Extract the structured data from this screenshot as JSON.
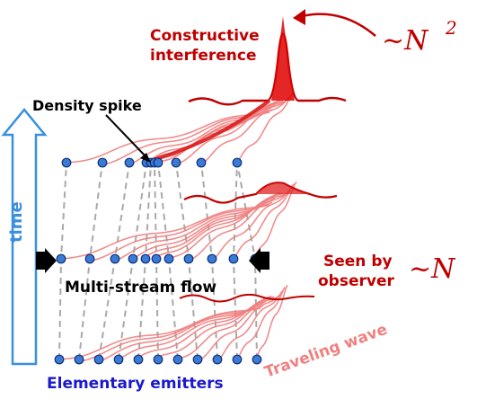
{
  "labels": {
    "constructive_1": "Constructive",
    "constructive_2": "interference",
    "density_spike": "Density spike",
    "time": "time",
    "multi_stream": "Multi-stream flow",
    "seen_by_1": "Seen by",
    "seen_by_2": "observer",
    "traveling_wave": "Traveling wave",
    "emitters": "Elementary emitters"
  },
  "scaling": {
    "n_squared_base": "~N",
    "n_squared_exp": "2",
    "n_linear": "~N"
  },
  "colors": {
    "red_dark": "#c00000",
    "red_light": "#f08080",
    "blue": "#1a1acc",
    "arrow_blue": "#3a8fde",
    "dot_fill": "#3a7bd5",
    "gray": "#a9a9a9"
  }
}
